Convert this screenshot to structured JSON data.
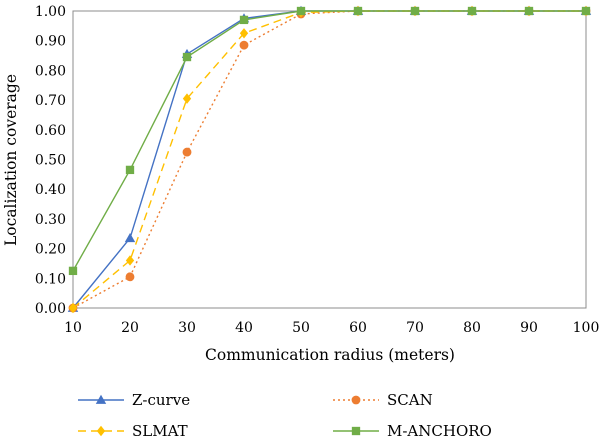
{
  "chart_data": {
    "type": "line",
    "title": "",
    "xlabel": "Communication radius (meters)",
    "ylabel": "Localization coverage",
    "x": [
      10,
      20,
      30,
      40,
      50,
      60,
      70,
      80,
      90,
      100
    ],
    "xlim": [
      10,
      100
    ],
    "ylim": [
      0,
      1
    ],
    "x_ticks": [
      "10",
      "20",
      "30",
      "40",
      "50",
      "60",
      "70",
      "80",
      "90",
      "100"
    ],
    "y_ticks": [
      "0.00",
      "0.10",
      "0.20",
      "0.30",
      "0.40",
      "0.50",
      "0.60",
      "0.70",
      "0.80",
      "0.90",
      "1.00"
    ],
    "grid": false,
    "legend_position": "bottom",
    "series": [
      {
        "name": "Z-curve",
        "color": "#4472C4",
        "marker": "triangle",
        "dash": "solid",
        "values": [
          0.0,
          0.235,
          0.855,
          0.975,
          1.0,
          1.0,
          1.0,
          1.0,
          1.0,
          1.0
        ]
      },
      {
        "name": "SCAN",
        "color": "#ED7D31",
        "marker": "circle",
        "dash": "dotted",
        "values": [
          0.0,
          0.105,
          0.525,
          0.885,
          0.99,
          1.0,
          1.0,
          1.0,
          1.0,
          1.0
        ]
      },
      {
        "name": "SLMAT",
        "color": "#FFC000",
        "marker": "diamond",
        "dash": "dashed",
        "values": [
          0.0,
          0.16,
          0.705,
          0.925,
          0.995,
          1.0,
          1.0,
          1.0,
          1.0,
          1.0
        ]
      },
      {
        "name": "M-ANCHORO",
        "color": "#70AD47",
        "marker": "square",
        "dash": "solid",
        "values": [
          0.125,
          0.465,
          0.845,
          0.97,
          1.0,
          1.0,
          1.0,
          1.0,
          1.0,
          1.0
        ]
      }
    ]
  }
}
